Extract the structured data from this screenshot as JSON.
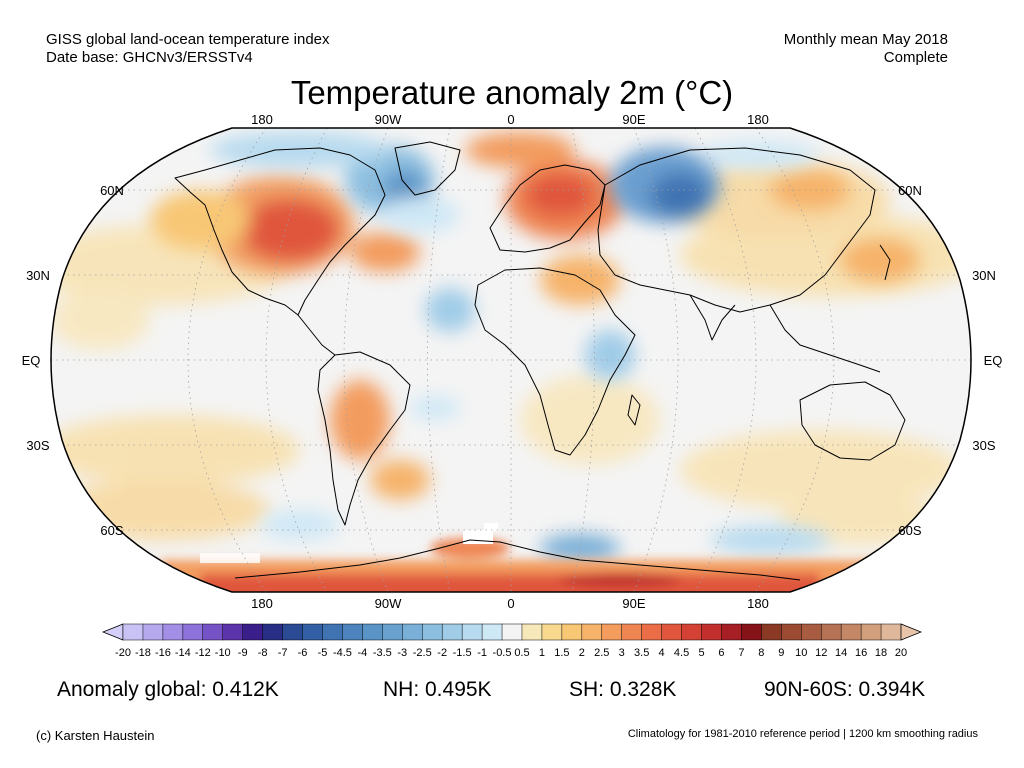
{
  "header": {
    "dataset_line1": "GISS global land-ocean temperature index",
    "dataset_line2": "Date base: GHCNv3/ERSSTv4",
    "period_line1": "Monthly mean May 2018",
    "period_line2": "Complete"
  },
  "title": "Temperature anomaly 2m (°C)",
  "map": {
    "projection": "robinson",
    "longitude_labels": [
      "180",
      "90W",
      "0",
      "90E",
      "180"
    ],
    "latitude_labels": [
      "60N",
      "30N",
      "EQ",
      "30S",
      "60S"
    ],
    "anomaly_regions": [
      {
        "region": "Eastern North America",
        "category": "warm-strong"
      },
      {
        "region": "Europe / Scandinavia",
        "category": "warm-strong"
      },
      {
        "region": "Western Siberia",
        "category": "cold-strong"
      },
      {
        "region": "Greenland / Labrador",
        "category": "cold"
      },
      {
        "region": "Antarctica coast",
        "category": "warm-strong"
      },
      {
        "region": "Southern South America",
        "category": "warm"
      },
      {
        "region": "Northeast Pacific",
        "category": "warm"
      }
    ]
  },
  "colorbar": {
    "labels": [
      "-20",
      "-18",
      "-16",
      "-14",
      "-12",
      "-10",
      "-9",
      "-8",
      "-7",
      "-6",
      "-5",
      "-4.5",
      "-4",
      "-3.5",
      "-3",
      "-2.5",
      "-2",
      "-1.5",
      "-1",
      "-0.5",
      "0.5",
      "1",
      "1.5",
      "2",
      "2.5",
      "3",
      "3.5",
      "4",
      "4.5",
      "5",
      "6",
      "7",
      "8",
      "9",
      "10",
      "12",
      "14",
      "16",
      "18",
      "20"
    ],
    "colors": [
      "#c9c3f5",
      "#b7a9ee",
      "#a38fe6",
      "#8d72d9",
      "#7552c6",
      "#5b34aa",
      "#3a1e8a",
      "#2a2f86",
      "#2b4a94",
      "#335fa4",
      "#3f73b2",
      "#4d84bd",
      "#5a93c6",
      "#69a1cf",
      "#7aafd7",
      "#8dbfe0",
      "#a0cce8",
      "#b7daef",
      "#cfe8f6",
      "#f4f4f4",
      "#f6e8b8",
      "#f8d98f",
      "#f8c776",
      "#f6b36a",
      "#f39c5e",
      "#ef8552",
      "#ea6d47",
      "#e0573e",
      "#d44236",
      "#c1302d",
      "#a51f25",
      "#86131a",
      "#8a3a24",
      "#9a4b32",
      "#a85d42",
      "#b67254",
      "#c48867",
      "#d19f7c",
      "#dfb79b"
    ]
  },
  "stats": {
    "global": "Anomaly global: 0.412K",
    "nh": "NH: 0.495K",
    "sh": "SH: 0.328K",
    "arctic_band": "90N-60S: 0.394K"
  },
  "credits": {
    "author": "(c) Karsten Haustein",
    "note": "Climatology for 1981-2010 reference period | 1200 km smoothing radius"
  }
}
